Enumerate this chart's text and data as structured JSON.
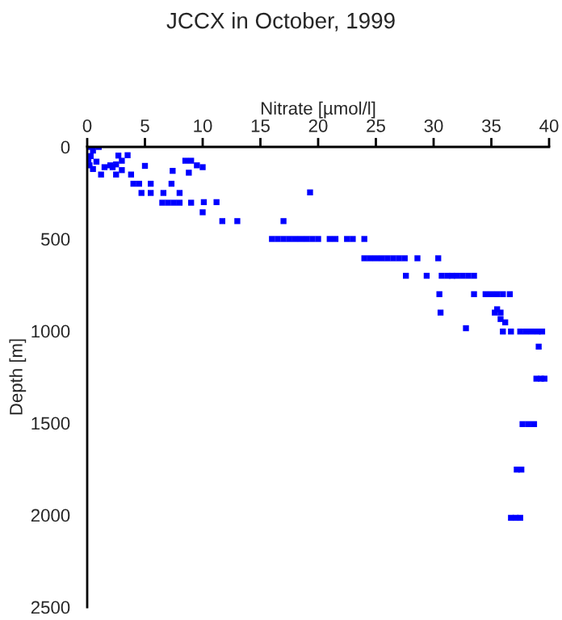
{
  "chart_data": {
    "type": "scatter",
    "title": "JCCX in October, 1999",
    "xlabel": "Nitrate [µmol/l]",
    "ylabel": "Depth [m]",
    "xlim": [
      0,
      40
    ],
    "xticks": [
      0,
      5,
      10,
      15,
      20,
      25,
      30,
      35,
      40
    ],
    "ylim": [
      2500,
      0
    ],
    "yticks": [
      0,
      500,
      1000,
      1500,
      2000,
      2500
    ],
    "grid": false,
    "marker": "square",
    "legend": false,
    "series": [
      {
        "color": "#0000ff",
        "x": [
          0.2,
          0.5,
          1.0,
          0.3,
          0.8,
          0.2,
          0.5,
          0.1,
          1.5,
          2.0,
          2.2,
          1.2,
          2.7,
          3.5,
          3.0,
          2.5,
          5.0,
          3.0,
          2.5,
          3.8,
          4.0,
          4.5,
          5.5,
          7.3,
          4.7,
          5.5,
          6.6,
          8.0,
          6.5,
          7.0,
          7.5,
          8.0,
          9.0,
          10.1,
          11.2,
          8.5,
          9.0,
          9.5,
          10.0,
          7.4,
          8.8,
          10.0,
          11.7,
          13.0,
          17.0,
          19.3,
          16.0,
          16.5,
          17.0,
          17.5,
          18.0,
          18.5,
          19.0,
          19.5,
          20.0,
          21.0,
          21.5,
          22.5,
          23.0,
          24.0,
          24.0,
          24.5,
          25.0,
          25.5,
          26.0,
          26.5,
          27.0,
          27.5,
          28.6,
          30.4,
          27.6,
          29.4,
          30.7,
          31.2,
          31.6,
          32.0,
          32.5,
          33.0,
          33.5,
          30.5,
          33.5,
          34.5,
          35.0,
          35.5,
          36.0,
          36.6,
          35.5,
          30.6,
          35.3,
          35.8,
          35.8,
          36.2,
          32.8,
          36.0,
          36.7,
          37.5,
          38.0,
          38.5,
          39.0,
          39.4,
          39.1,
          38.9,
          39.3,
          39.6,
          37.7,
          38.2,
          38.7,
          37.2,
          37.6,
          36.7,
          37.1,
          37.5
        ],
        "values": [
          0,
          20,
          0,
          50,
          80,
          100,
          120,
          70,
          110,
          100,
          110,
          150,
          47,
          45,
          75,
          95,
          103,
          126,
          150,
          150,
          200,
          200,
          200,
          200,
          250,
          250,
          250,
          250,
          303,
          303,
          303,
          303,
          303,
          300,
          300,
          75,
          75,
          100,
          110,
          130,
          140,
          355,
          403,
          403,
          403,
          247,
          500,
          500,
          500,
          500,
          500,
          500,
          500,
          500,
          500,
          500,
          500,
          500,
          500,
          500,
          605,
          605,
          605,
          605,
          605,
          605,
          605,
          605,
          605,
          605,
          700,
          700,
          700,
          700,
          700,
          700,
          700,
          700,
          700,
          800,
          800,
          800,
          800,
          800,
          800,
          800,
          882,
          900,
          900,
          900,
          935,
          953,
          985,
          1003,
          1003,
          1003,
          1003,
          1003,
          1003,
          1003,
          1085,
          1259,
          1259,
          1259,
          1506,
          1506,
          1506,
          1753,
          1753,
          2015,
          2015,
          2015
        ]
      }
    ]
  }
}
